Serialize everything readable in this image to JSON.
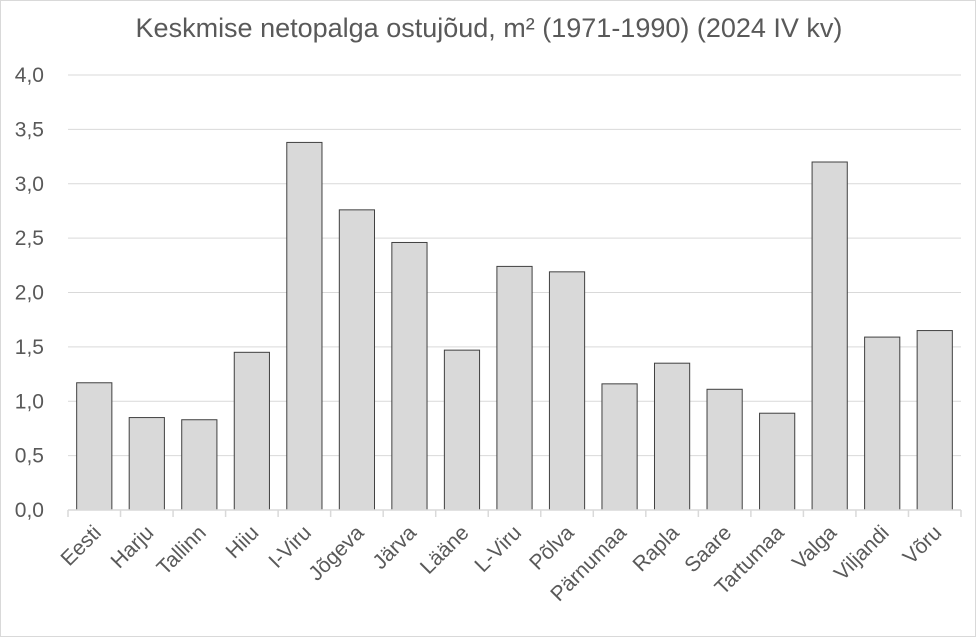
{
  "chart_data": {
    "type": "bar",
    "title": "Keskmise netopalga ostujõud, m² (1971-1990) (2024 IV kv)",
    "xlabel": "",
    "ylabel": "",
    "ylim": [
      0,
      4.0
    ],
    "yticks": [
      "0,0",
      "0,5",
      "1,0",
      "1,5",
      "2,0",
      "2,5",
      "3,0",
      "3,5",
      "4,0"
    ],
    "grid": true,
    "legend": "none",
    "categories": [
      "Eesti",
      "Harju",
      "Tallinn",
      "Hiiu",
      "I-Viru",
      "Jõgeva",
      "Järva",
      "Lääne",
      "L-Viru",
      "Põlva",
      "Pärnumaa",
      "Rapla",
      "Saare",
      "Tartumaa",
      "Valga",
      "Viljandi",
      "Võru"
    ],
    "values": [
      1.17,
      0.85,
      0.83,
      1.45,
      3.38,
      2.76,
      2.46,
      1.47,
      2.24,
      2.19,
      1.16,
      1.35,
      1.11,
      0.89,
      3.2,
      1.59,
      1.65
    ],
    "colors": {
      "bar_fill": "#d9d9d9",
      "bar_stroke": "#404040",
      "grid": "#d9d9d9",
      "text": "#595959"
    }
  }
}
